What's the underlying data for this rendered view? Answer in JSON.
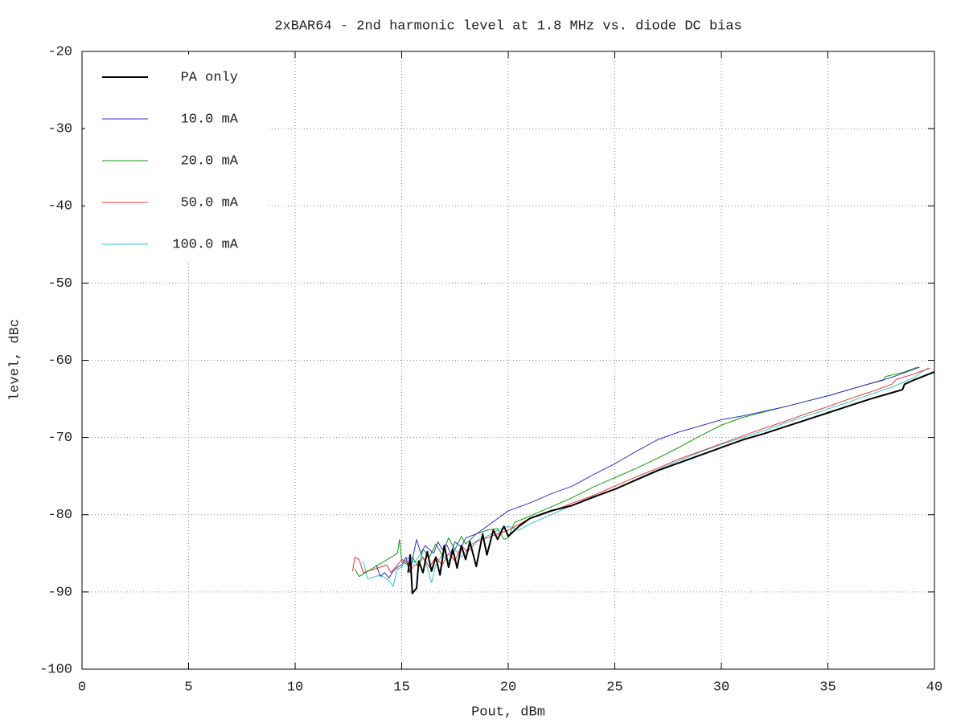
{
  "chart_data": {
    "type": "line",
    "title": "2xBAR64 - 2nd harmonic level at 1.8 MHz vs. diode DC bias",
    "x_label": "Pout, dBm",
    "y_label": "level, dBc",
    "xlim": [
      0,
      40
    ],
    "xticks": [
      0,
      5,
      10,
      15,
      20,
      25,
      30,
      35,
      40
    ],
    "ylim": [
      -100,
      -20
    ],
    "yticks": [
      -20,
      -30,
      -40,
      -50,
      -60,
      -70,
      -80,
      -90,
      -100
    ],
    "grid": true,
    "legend": "top-left",
    "series": [
      {
        "name": "PA only",
        "color": "#000000",
        "x": [
          15.3,
          15.4,
          15.5,
          15.7,
          15.8,
          16.0,
          16.2,
          16.4,
          16.6,
          16.8,
          17.0,
          17.2,
          17.4,
          17.6,
          17.8,
          18.0,
          18.2,
          18.5,
          18.8,
          19.0,
          19.3,
          19.5,
          19.8,
          20.0,
          20.5,
          21,
          21.5,
          22,
          23,
          24,
          25,
          26,
          27,
          28,
          29,
          30,
          31,
          32,
          33,
          34,
          35,
          36,
          37,
          38,
          38.5,
          38.6,
          39,
          40
        ],
        "values": [
          -87.5,
          -85.2,
          -90.2,
          -89.5,
          -86,
          -87.5,
          -84.8,
          -87.3,
          -85.5,
          -87.8,
          -84.0,
          -86.8,
          -84.5,
          -86.9,
          -84.0,
          -85.8,
          -83.5,
          -86.7,
          -82.5,
          -85.2,
          -82.0,
          -83.2,
          -81.5,
          -82.8,
          -81.5,
          -80.5,
          -80.0,
          -79.5,
          -78.8,
          -77.7,
          -76.7,
          -75.5,
          -74.3,
          -73.3,
          -72.3,
          -71.3,
          -70.3,
          -69.5,
          -68.6,
          -67.7,
          -66.8,
          -65.9,
          -65.0,
          -64.2,
          -63.8,
          -63.1,
          -62.6,
          -61.5
        ]
      },
      {
        "name": "10.0 mA",
        "color": "#3333cc",
        "x": [
          13.8,
          14.0,
          14.2,
          14.4,
          14.6,
          14.8,
          15.0,
          15.2,
          15.4,
          15.6,
          15.7,
          15.9,
          16.1,
          16.3,
          16.5,
          16.7,
          16.9,
          17.1,
          17.3,
          17.5,
          17.8,
          18,
          18.5,
          19,
          19.5,
          20,
          20.5,
          21,
          22,
          23,
          24,
          25,
          26,
          27,
          28,
          29,
          30,
          31,
          32,
          33,
          34,
          35,
          36,
          37,
          38,
          39,
          39.3
        ],
        "values": [
          -86.5,
          -88,
          -87.5,
          -88.2,
          -87.3,
          -86.8,
          -86.5,
          -85.5,
          -87.5,
          -84.5,
          -83.2,
          -85.0,
          -84.0,
          -84.5,
          -85.0,
          -83.5,
          -84.5,
          -83.8,
          -85.0,
          -83.5,
          -84.2,
          -83.0,
          -82.5,
          -81.5,
          -80.5,
          -79.5,
          -79.0,
          -78.5,
          -77.3,
          -76.3,
          -74.8,
          -73.4,
          -71.8,
          -70.3,
          -69.3,
          -68.5,
          -67.7,
          -67.2,
          -66.6,
          -66.0,
          -65.3,
          -64.6,
          -63.8,
          -63.0,
          -62.2,
          -61.2,
          -60.9
        ]
      },
      {
        "name": "20.0 mA",
        "color": "#119911",
        "x": [
          12.8,
          13.0,
          14.8,
          14.9,
          15.0,
          15.3,
          15.5,
          15.8,
          16.0,
          16.3,
          16.6,
          16.9,
          17.2,
          17.5,
          17.8,
          18.0,
          18.5,
          19,
          19.5,
          19.8,
          20,
          20.3,
          21,
          22,
          23,
          24,
          25,
          26,
          27,
          28,
          29,
          30,
          31,
          32,
          33,
          34,
          35,
          36,
          37,
          37.6,
          37.7,
          38.5,
          39.2
        ],
        "values": [
          -87,
          -88,
          -85,
          -83.2,
          -86,
          -86.5,
          -85.5,
          -86.8,
          -84.5,
          -85.5,
          -83.8,
          -85.2,
          -83.0,
          -84.5,
          -82.8,
          -83.8,
          -82.5,
          -82.0,
          -81.8,
          -83.2,
          -83.0,
          -81.0,
          -80.2,
          -79.0,
          -77.8,
          -76.4,
          -75.2,
          -74.0,
          -72.7,
          -71.3,
          -69.8,
          -68.4,
          -67.4,
          -66.7,
          -66.0,
          -65.3,
          -64.6,
          -63.8,
          -63.0,
          -62.6,
          -62.1,
          -61.6,
          -60.9
        ]
      },
      {
        "name": "50.0 mA",
        "color": "#ee3333",
        "x": [
          12.7,
          12.8,
          13.0,
          13.2,
          14.3,
          14.5,
          14.8,
          15.0,
          15.2,
          15.4,
          15.6,
          15.8,
          16.0,
          16.3,
          16.6,
          16.9,
          17.2,
          17.5,
          17.8,
          18.1,
          18.5,
          19,
          19.5,
          20,
          21,
          22,
          23,
          24,
          25,
          26,
          27,
          28,
          29,
          30,
          31,
          32,
          33,
          34,
          35,
          36,
          37,
          38,
          38.2,
          39,
          39.8
        ],
        "values": [
          -87.3,
          -85.5,
          -85.8,
          -87.5,
          -86.5,
          -87.5,
          -86.5,
          -85.8,
          -86.0,
          -87.3,
          -86.5,
          -86.5,
          -85.5,
          -86.8,
          -85.5,
          -86.5,
          -85.0,
          -86.0,
          -84.0,
          -84.8,
          -83.5,
          -83.0,
          -82.5,
          -82.0,
          -80.5,
          -79.6,
          -78.5,
          -77.5,
          -76.3,
          -75.1,
          -74.0,
          -72.8,
          -71.8,
          -70.8,
          -69.8,
          -68.8,
          -67.9,
          -66.9,
          -66.0,
          -65.0,
          -64.1,
          -63.1,
          -62.5,
          -61.8,
          -61.0
        ]
      },
      {
        "name": "100.0 mA",
        "color": "#33c8d0",
        "x": [
          13.2,
          13.4,
          14.0,
          14.4,
          14.6,
          14.8,
          15.0,
          15.3,
          15.6,
          15.9,
          16.2,
          16.4,
          16.6,
          16.9,
          17.2,
          17.5,
          17.8,
          18.2,
          18.6,
          19,
          19.5,
          20,
          20.5,
          21,
          22,
          23,
          24,
          25,
          26,
          27,
          28,
          29,
          30,
          31,
          32,
          33,
          34,
          35,
          36,
          37,
          38,
          39,
          39.7
        ],
        "values": [
          -86,
          -88.3,
          -87.8,
          -88.5,
          -89.3,
          -87,
          -86.8,
          -85.5,
          -86.2,
          -85.0,
          -86.8,
          -88.8,
          -86.5,
          -85.2,
          -86.0,
          -84.5,
          -85.5,
          -84.0,
          -83.2,
          -82.8,
          -82.0,
          -81.5,
          -82.0,
          -81.2,
          -80.0,
          -78.8,
          -77.8,
          -76.7,
          -75.4,
          -74.2,
          -73.0,
          -71.9,
          -70.9,
          -70.0,
          -69.1,
          -68.1,
          -67.2,
          -66.3,
          -65.4,
          -64.4,
          -63.5,
          -62.3,
          -61.0
        ]
      }
    ]
  }
}
